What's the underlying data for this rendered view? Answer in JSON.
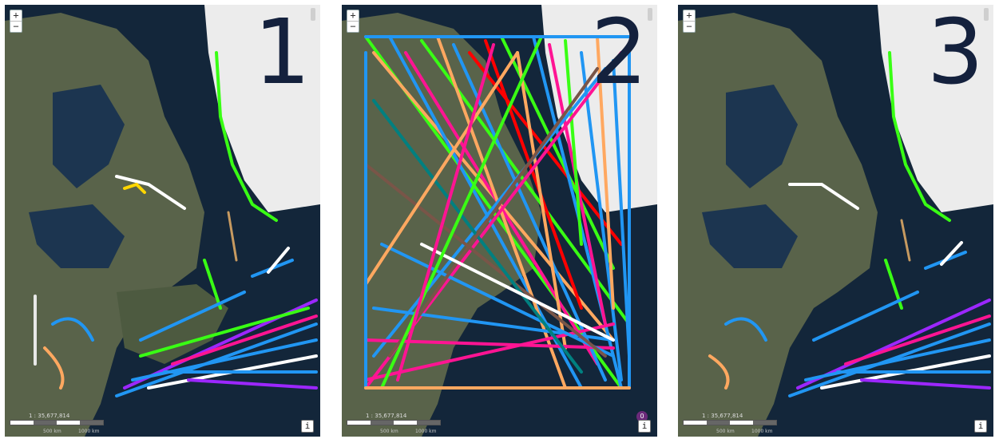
{
  "panels": [
    {
      "number": "1",
      "scale": "1 : 35,677,814",
      "scale_km_a": "500 km",
      "scale_km_b": "1000 km",
      "info": "i"
    },
    {
      "number": "2",
      "scale": "1 : 35,677,814",
      "scale_km_a": "500 km",
      "scale_km_b": "1000 km",
      "info": "i",
      "badge": "0"
    },
    {
      "number": "3",
      "scale": "1 : 35,677,814",
      "scale_km_a": "500 km",
      "scale_km_b": "1000 km",
      "info": "i"
    }
  ],
  "controls": {
    "zoom_in": "+",
    "zoom_out": "−"
  },
  "colors": {
    "ocean": "#0f1e2e",
    "land": "#566146",
    "greenland": "#ececec",
    "track_blue": "#2196f3",
    "track_green": "#39ff14",
    "track_purple": "#9c27ff",
    "track_pink": "#ff1493",
    "track_orange": "#ffa860",
    "track_white": "#ffffff"
  }
}
